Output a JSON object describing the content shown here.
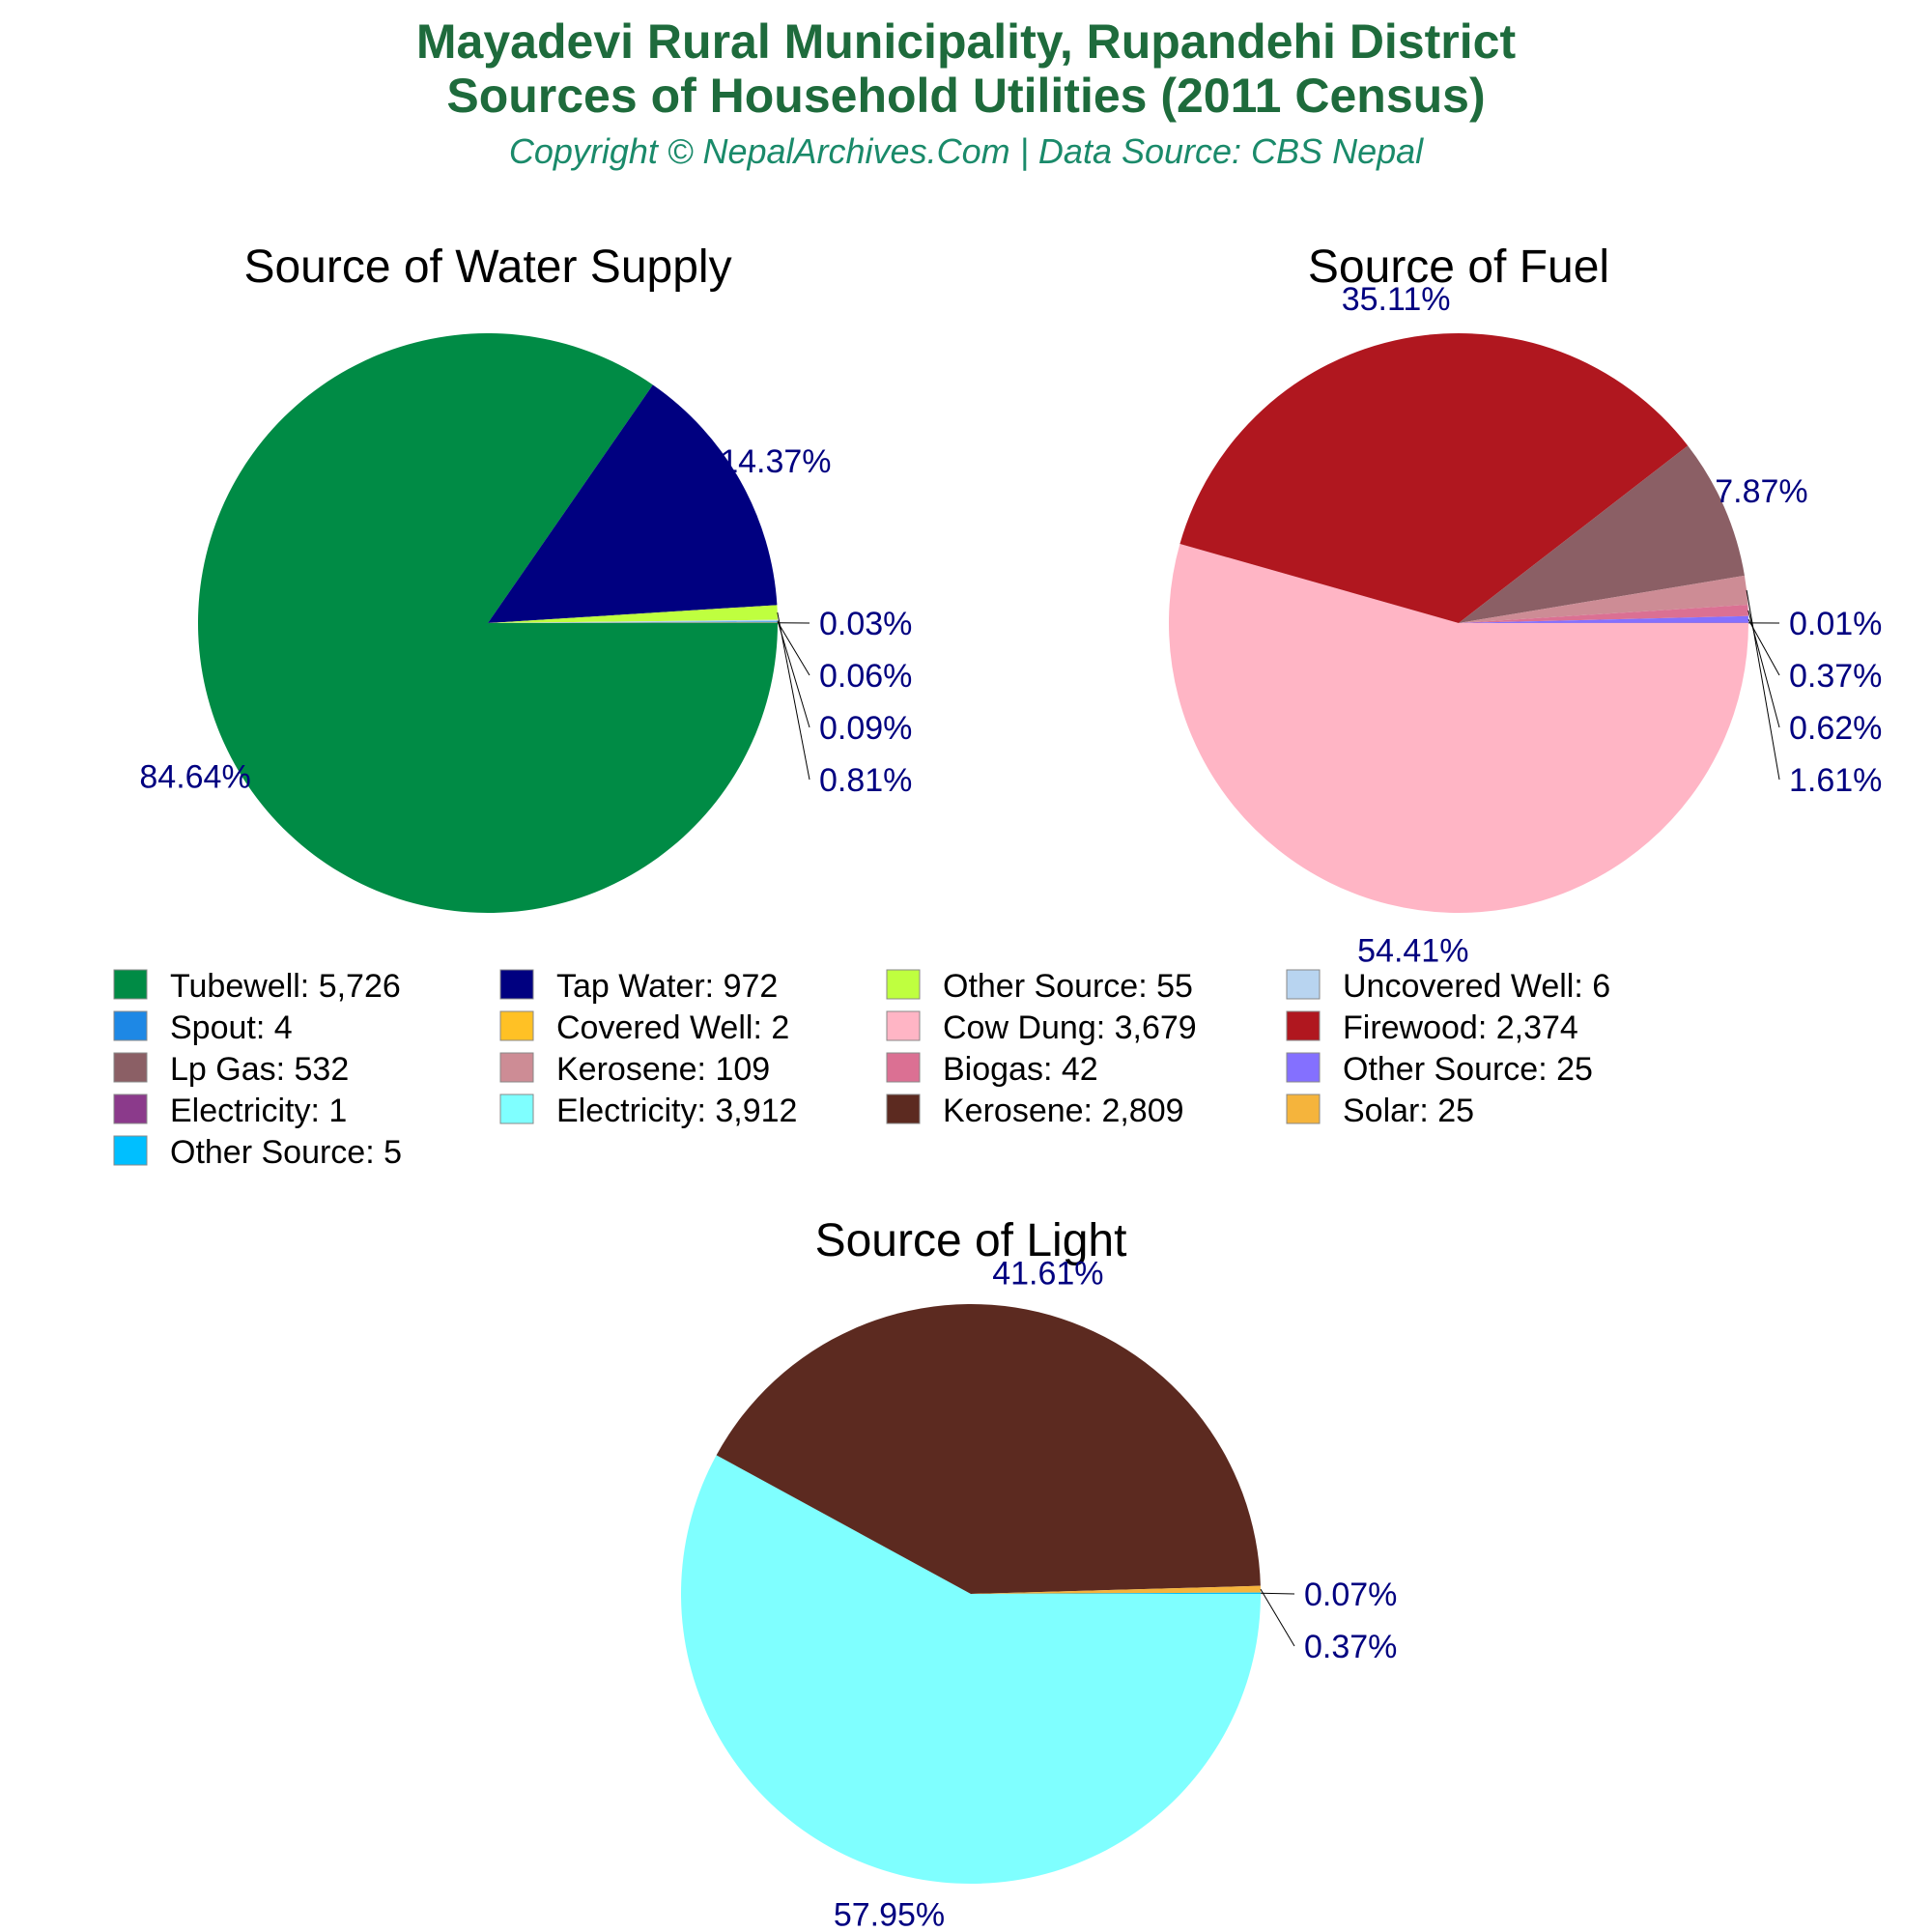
{
  "header": {
    "title_line1": "Mayadevi Rural Municipality, Rupandehi District",
    "title_line2": "Sources of Household Utilities (2011 Census)",
    "subtitle": "Copyright © NepalArchives.Com | Data Source: CBS Nepal"
  },
  "chart_data": [
    {
      "type": "pie",
      "title": "Source of Water Supply",
      "slices": [
        {
          "label": "Tubewell",
          "value": 5726,
          "percent_label": "84.64%",
          "color": "#008b45"
        },
        {
          "label": "Tap Water",
          "value": 972,
          "percent_label": "14.37%",
          "color": "#000080"
        },
        {
          "label": "Other Source",
          "value": 55,
          "percent_label": "0.81%",
          "color": "#bfff3f"
        },
        {
          "label": "Uncovered Well",
          "value": 6,
          "percent_label": "0.09%",
          "color": "#b8d4f0"
        },
        {
          "label": "Spout",
          "value": 4,
          "percent_label": "0.06%",
          "color": "#1e88e5"
        },
        {
          "label": "Covered Well",
          "value": 2,
          "percent_label": "0.03%",
          "color": "#ffc125"
        }
      ]
    },
    {
      "type": "pie",
      "title": "Source of Fuel",
      "slices": [
        {
          "label": "Cow Dung",
          "value": 3679,
          "percent_label": "54.41%",
          "color": "#ffb5c5"
        },
        {
          "label": "Firewood",
          "value": 2374,
          "percent_label": "35.11%",
          "color": "#b0171f"
        },
        {
          "label": "Lp Gas",
          "value": 532,
          "percent_label": "7.87%",
          "color": "#8b5f65"
        },
        {
          "label": "Kerosene",
          "value": 109,
          "percent_label": "1.61%",
          "color": "#cd8c95"
        },
        {
          "label": "Biogas",
          "value": 42,
          "percent_label": "0.62%",
          "color": "#db7093"
        },
        {
          "label": "Other Source",
          "value": 25,
          "percent_label": "0.37%",
          "color": "#8470ff"
        },
        {
          "label": "Electricity",
          "value": 1,
          "percent_label": "0.01%",
          "color": "#8b3a8b"
        }
      ]
    },
    {
      "type": "pie",
      "title": "Source of Light",
      "slices": [
        {
          "label": "Electricity",
          "value": 3912,
          "percent_label": "57.95%",
          "color": "#7fffff"
        },
        {
          "label": "Kerosene",
          "value": 2809,
          "percent_label": "41.61%",
          "color": "#5c2a20"
        },
        {
          "label": "Solar",
          "value": 25,
          "percent_label": "0.37%",
          "color": "#f5b43c"
        },
        {
          "label": "Other Source",
          "value": 5,
          "percent_label": "0.07%",
          "color": "#00bfff"
        }
      ]
    }
  ],
  "legend": [
    {
      "label": "Tubewell: 5,726",
      "color": "#008b45"
    },
    {
      "label": "Tap Water: 972",
      "color": "#000080"
    },
    {
      "label": "Other Source: 55",
      "color": "#bfff3f"
    },
    {
      "label": "Uncovered Well: 6",
      "color": "#b8d4f0"
    },
    {
      "label": "Spout: 4",
      "color": "#1e88e5"
    },
    {
      "label": "Covered Well: 2",
      "color": "#ffc125"
    },
    {
      "label": "Cow Dung: 3,679",
      "color": "#ffb5c5"
    },
    {
      "label": "Firewood: 2,374",
      "color": "#b0171f"
    },
    {
      "label": "Lp Gas: 532",
      "color": "#8b5f65"
    },
    {
      "label": "Kerosene: 109",
      "color": "#cd8c95"
    },
    {
      "label": "Biogas: 42",
      "color": "#db7093"
    },
    {
      "label": "Other Source: 25",
      "color": "#8470ff"
    },
    {
      "label": "Electricity: 1",
      "color": "#8b3a8b"
    },
    {
      "label": "Electricity: 3,912",
      "color": "#7fffff"
    },
    {
      "label": "Kerosene: 2,809",
      "color": "#5c2a20"
    },
    {
      "label": "Solar: 25",
      "color": "#f5b43c"
    },
    {
      "label": "Other Source: 5",
      "color": "#00bfff"
    }
  ]
}
